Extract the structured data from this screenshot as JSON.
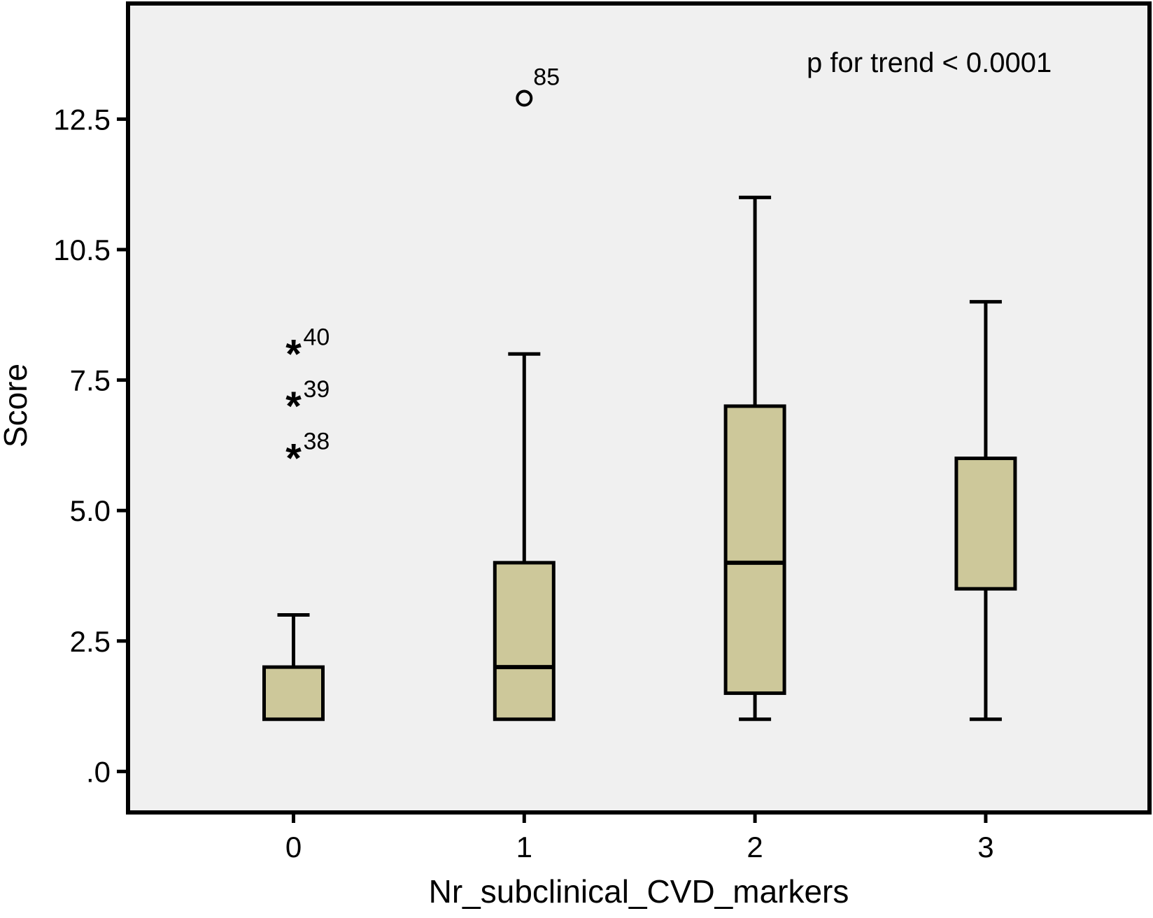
{
  "figure": {
    "annotation": "p for trend < 0.0001",
    "colors": {
      "box_fill": "#cdc89a",
      "plot_background": "#f0f0f0",
      "line": "#000000",
      "outer_background": "#ffffff"
    }
  },
  "chart_data": {
    "type": "boxplot",
    "title": "",
    "xlabel": "Nr_subclinical_CVD_markers",
    "ylabel": "Score",
    "annotation": "p for trend < 0.0001",
    "categories": [
      "0",
      "1",
      "2",
      "3"
    ],
    "y_tick_labels": [
      ".0",
      "2.5",
      "5.0",
      "7.5",
      "10.5",
      "12.5"
    ],
    "ylim": [
      -0.9,
      14.2
    ],
    "grid": false,
    "legend": "none",
    "groups": [
      {
        "category": "0",
        "whisker_low": 1.0,
        "q1": 1.0,
        "median": 1.0,
        "q3": 2.0,
        "whisker_high": 3.0,
        "median_line_visible": false,
        "lower_whisker_visible": false,
        "outliers": [
          {
            "marker": "asterisk",
            "value": 8.0,
            "label": "40"
          },
          {
            "marker": "asterisk",
            "value": 7.0,
            "label": "39"
          },
          {
            "marker": "asterisk",
            "value": 6.0,
            "label": "38"
          }
        ]
      },
      {
        "category": "1",
        "whisker_low": 1.0,
        "q1": 1.0,
        "median": 2.0,
        "q3": 4.0,
        "whisker_high": 8.0,
        "median_line_visible": true,
        "lower_whisker_visible": false,
        "outliers": [
          {
            "marker": "circle",
            "value": 12.9,
            "label": "85"
          }
        ]
      },
      {
        "category": "2",
        "whisker_low": 1.0,
        "q1": 1.5,
        "median": 4.0,
        "q3": 7.0,
        "whisker_high": 11.0,
        "median_line_visible": true,
        "lower_whisker_visible": true,
        "outliers": []
      },
      {
        "category": "3",
        "whisker_low": 1.0,
        "q1": 3.5,
        "median": 3.5,
        "q3": 6.0,
        "whisker_high": 9.0,
        "median_line_visible": false,
        "lower_whisker_visible": true,
        "outliers": []
      }
    ]
  }
}
